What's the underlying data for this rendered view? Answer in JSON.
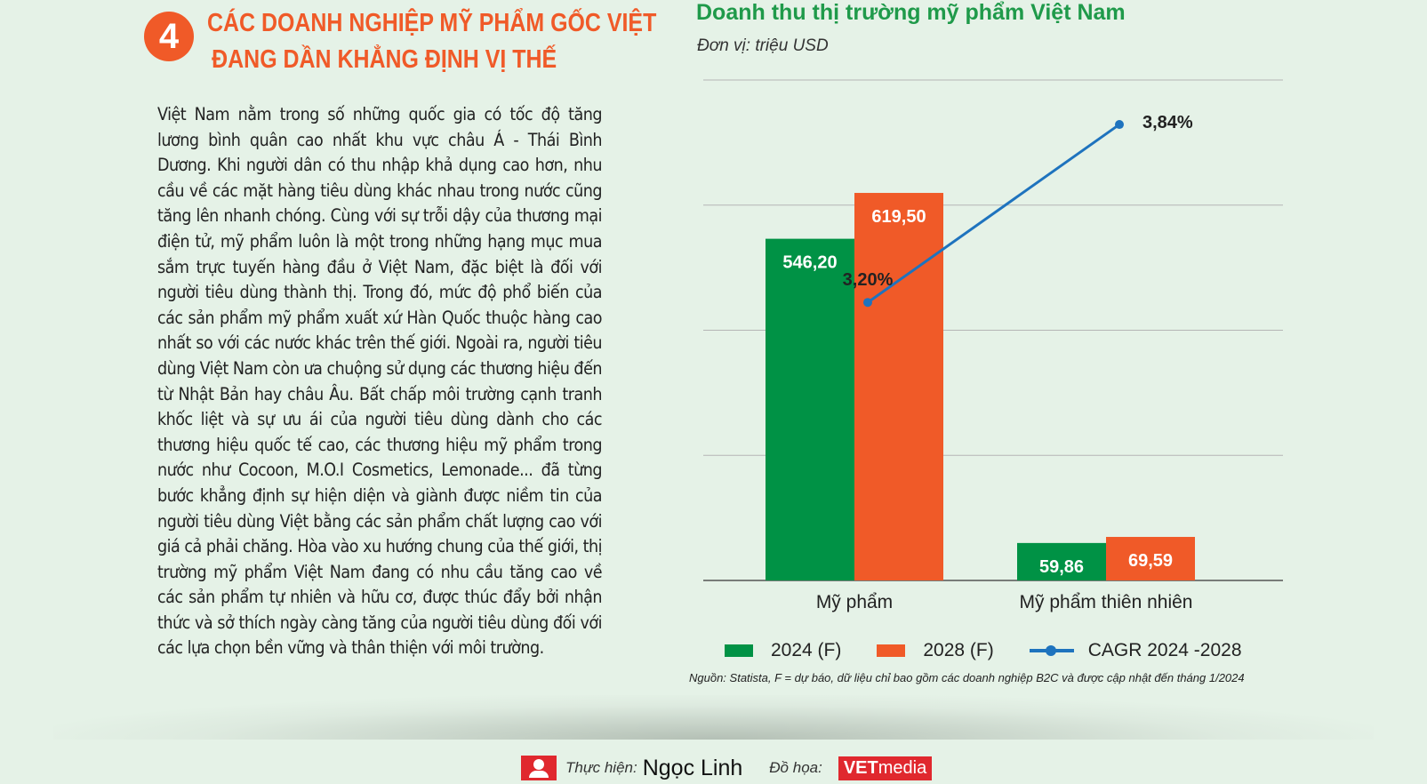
{
  "section": {
    "number": "4",
    "title_line1": "CÁC DOANH NGHIỆP MỸ PHẨM GỐC VIỆT",
    "title_line2": "ĐANG DẦN KHẲNG ĐỊNH VỊ THẾ"
  },
  "article": {
    "paragraph": "Việt Nam nằm trong số những quốc gia có tốc độ tăng lương bình quân cao nhất khu vực châu Á - Thái Bình Dương. Khi người dân có thu nhập khả dụng cao hơn, nhu cầu về các mặt hàng tiêu dùng khác nhau trong nước cũng tăng lên nhanh chóng. Cùng với sự trỗi dậy của thương mại điện tử, mỹ phẩm luôn là một trong những hạng mục mua sắm trực tuyến hàng đầu ở Việt Nam, đặc biệt là đối với người tiêu dùng thành thị. Trong đó, mức độ phổ biến của các sản phẩm mỹ phẩm xuất xứ Hàn Quốc thuộc hàng cao nhất so với các nước khác trên thế giới. Ngoài ra, người tiêu dùng Việt Nam còn ưa chuộng sử dụng các thương hiệu đến từ Nhật Bản hay châu Âu. Bất chấp môi trường cạnh tranh khốc liệt và sự ưu ái của người tiêu dùng dành cho các thương hiệu quốc tế cao, các thương hiệu mỹ phẩm trong nước như Cocoon, M.O.I Cosmetics, Lemonade... đã từng bước khẳng định sự hiện diện và giành được niềm tin của người tiêu dùng Việt bằng các sản phẩm chất lượng cao với giá cả phải chăng. Hòa vào xu hướng chung của thế giới, thị trường mỹ phẩm Việt Nam đang có nhu cầu tăng cao về các sản phẩm tự nhiên và hữu cơ, được thúc đẩy bởi nhận thức và sở thích ngày càng tăng của người tiêu dùng đối với các lựa chọn bền vững và thân thiện với môi trường."
  },
  "chart_data": {
    "type": "bar",
    "title": "Doanh thu thị trường mỹ phẩm Việt Nam",
    "subtitle": "Đơn vị: triệu USD",
    "categories": [
      "Mỹ phẩm",
      "Mỹ phẩm thiên nhiên"
    ],
    "series": [
      {
        "name": "2024 (F)",
        "values": [
          546.2,
          59.86
        ],
        "labels": [
          "546,20",
          "59,86"
        ],
        "color": "#009245"
      },
      {
        "name": "2028 (F)",
        "values": [
          619.5,
          69.59
        ],
        "labels": [
          "619,50",
          "69,59"
        ],
        "color": "#f05a28"
      }
    ],
    "line_series": {
      "name": "CAGR 2024 -2028",
      "values": [
        3.2,
        3.84
      ],
      "labels": [
        "3,20%",
        "3,84%"
      ],
      "color": "#1e73be"
    },
    "ylim": [
      0,
      800
    ],
    "grid": true,
    "legend": "bottom",
    "source": "Nguồn: Statista, F = dự báo, dữ liệu chỉ bao gồm các doanh nghiệp B2C và được cập nhật đến tháng 1/2024"
  },
  "footer": {
    "author_label": "Thực hiện:",
    "author_name": "Ngọc Linh",
    "design_label": "Đồ họa:",
    "brand_bold": "VET",
    "brand_rest": "media"
  }
}
